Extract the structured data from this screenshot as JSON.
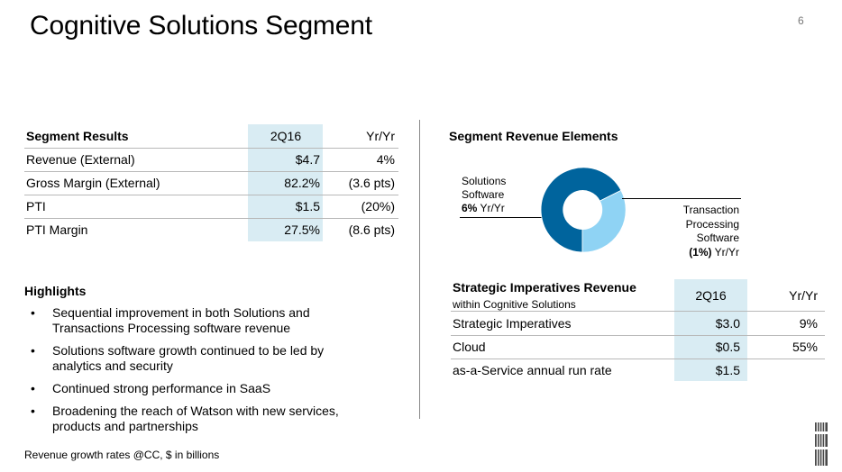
{
  "title": "Cognitive Solutions Segment",
  "page_number": "6",
  "segment_results": {
    "headers": [
      "Segment Results",
      "2Q16",
      "Yr/Yr"
    ],
    "rows": [
      [
        "Revenue (External)",
        "$4.7",
        "4%"
      ],
      [
        "Gross Margin (External)",
        "82.2%",
        "(3.6 pts)"
      ],
      [
        "PTI",
        "$1.5",
        "(20%)"
      ],
      [
        "PTI Margin",
        "27.5%",
        "(8.6 pts)"
      ]
    ]
  },
  "highlights": {
    "heading": "Highlights",
    "bullet_symbol": "•",
    "items": [
      [
        "Sequential improvement in both Solutions and",
        "Transactions Processing software revenue"
      ],
      [
        "Solutions software growth continued to be led by",
        "analytics and security"
      ],
      [
        "Continued strong performance in SaaS"
      ],
      [
        "Broadening the reach of Watson with new services,",
        "products and partnerships"
      ]
    ]
  },
  "footnote": "Revenue growth rates @CC, $ in billions",
  "segment_revenue_elements": {
    "heading": "Segment Revenue Elements",
    "solutions_label": [
      "Solutions",
      "Software"
    ],
    "solutions_pct": "6%",
    "solutions_suffix": " Yr/Yr",
    "tps_label": [
      "Transaction",
      "Processing",
      "Software"
    ],
    "tps_pct": "(1%)",
    "tps_suffix": " Yr/Yr",
    "donut_colors": {
      "solutions": "#00649d",
      "tps": "#8fd3f4"
    }
  },
  "strategic_imperatives": {
    "heading": "Strategic Imperatives Revenue",
    "subheading": "within Cognitive Solutions",
    "col2": "2Q16",
    "col3": "Yr/Yr",
    "rows": [
      [
        "Strategic Imperatives",
        "$3.0",
        "9%"
      ],
      [
        "Cloud",
        "$0.5",
        "55%"
      ],
      [
        "as-a-Service annual run rate",
        "$1.5",
        ""
      ]
    ]
  },
  "logo_text": "IBM",
  "colors": {
    "highlight": "#d9ecf3",
    "rule": "#b8b8b8"
  }
}
